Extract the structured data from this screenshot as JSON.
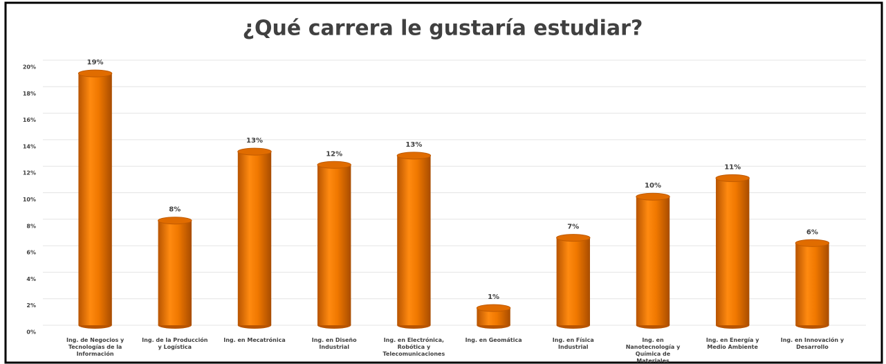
{
  "chart_data": {
    "type": "bar",
    "title": "¿Qué carrera le gustaría estudiar?",
    "categories": [
      "Ing. de Negocios y Tecnologías de la Información",
      "Ing. de la Producción y Logística",
      "Ing. en Mecatrónica",
      "Ing. en Diseño Industrial",
      "Ing. en Electrónica, Robótica y Telecomunicaciones",
      "Ing. en Geomática",
      "Ing. en Física Industrial",
      "Ing. en Nanotecnología y Química de Materiales",
      "Ing. en Energía y Medio Ambiente",
      "Ing. en Innovación y Desarrollo"
    ],
    "values": [
      19.0,
      7.9,
      13.1,
      12.1,
      12.8,
      1.3,
      6.6,
      9.7,
      11.1,
      6.2
    ],
    "value_labels": [
      "19%",
      "8%",
      "13%",
      "12%",
      "13%",
      "1%",
      "7%",
      "10%",
      "11%",
      "6%"
    ],
    "color": "#f07800",
    "ylim": [
      0,
      20
    ],
    "yticks": [
      {
        "value": 0,
        "label": "0%"
      },
      {
        "value": 2,
        "label": "2%"
      },
      {
        "value": 4,
        "label": "4%"
      },
      {
        "value": 6,
        "label": "6%"
      },
      {
        "value": 8,
        "label": "8%"
      },
      {
        "value": 10,
        "label": "10%"
      },
      {
        "value": 12,
        "label": "12%"
      },
      {
        "value": 14,
        "label": "14%"
      },
      {
        "value": 16,
        "label": "16%"
      },
      {
        "value": 18,
        "label": "18%"
      },
      {
        "value": 20,
        "label": "20%"
      }
    ],
    "grid": true
  }
}
